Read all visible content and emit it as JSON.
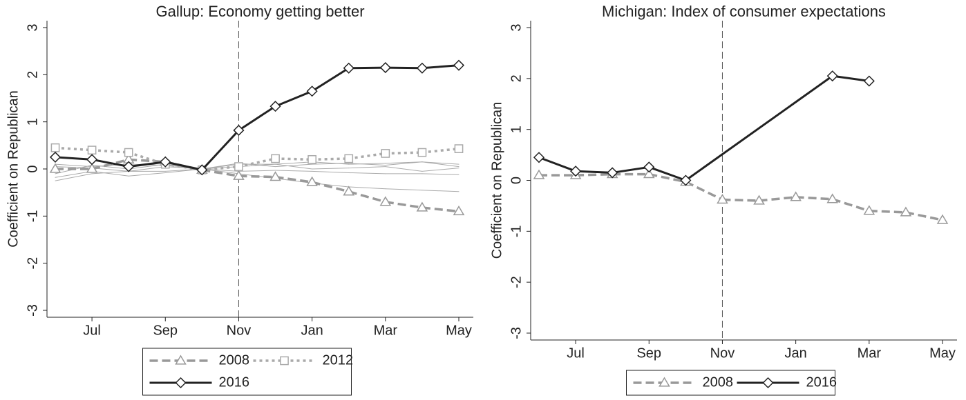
{
  "chart_data": [
    {
      "type": "line",
      "title": "Gallup: Economy getting better",
      "y_label": "Coefficient on Republican",
      "categories": [
        null,
        "Jul",
        null,
        "Sep",
        null,
        "Nov",
        null,
        "Jan",
        null,
        "Mar",
        null,
        "May"
      ],
      "ylim": [
        -3,
        3
      ],
      "yticks": [
        -3,
        -2,
        -1,
        0,
        1,
        2,
        3
      ],
      "vline": "Nov",
      "legend_columns": 2,
      "series": [
        {
          "color": "#aaaaaa",
          "width": 1,
          "values": [
            -0.25,
            -0.1,
            -0.05,
            -0.05,
            0,
            0.1,
            0.1,
            0.15,
            0.1,
            0.12,
            0.15,
            0.1
          ]
        },
        {
          "color": "#aaaaaa",
          "width": 1,
          "values": [
            -0.18,
            -0.05,
            -0.15,
            -0.08,
            0,
            -0.05,
            -0.03,
            -0.05,
            -0.08,
            -0.1,
            -0.1,
            -0.12
          ]
        },
        {
          "color": "#aaaaaa",
          "width": 1,
          "values": [
            0.05,
            0.02,
            -0.05,
            0.05,
            0,
            -0.1,
            -0.2,
            -0.3,
            -0.38,
            -0.42,
            -0.45,
            -0.48
          ]
        },
        {
          "color": "#aaaaaa",
          "width": 1,
          "values": [
            0.1,
            0.05,
            0.1,
            0.08,
            0,
            0.05,
            0.1,
            0.0,
            0.02,
            0.05,
            -0.05,
            0.02
          ]
        },
        {
          "color": "#aaaaaa",
          "width": 1,
          "values": [
            -0.1,
            0.08,
            0.0,
            0.1,
            0,
            0.12,
            0.05,
            0.1,
            0.12,
            0.08,
            0.15,
            0.05
          ]
        },
        {
          "name": "2008",
          "color": "#999999",
          "width": 3.5,
          "dash": "12,6",
          "marker": "triangle",
          "values": [
            0,
            0,
            0.2,
            0.15,
            -0.02,
            -0.15,
            -0.17,
            -0.28,
            -0.48,
            -0.7,
            -0.82,
            -0.9
          ]
        },
        {
          "name": "2012",
          "color": "#aaaaaa",
          "width": 3.5,
          "dash": "4,5",
          "marker": "square",
          "values": [
            0.45,
            0.4,
            0.35,
            0.1,
            -0.02,
            0.05,
            0.22,
            0.2,
            0.22,
            0.33,
            0.35,
            0.43
          ]
        },
        {
          "name": "2016",
          "color": "#222222",
          "width": 3,
          "marker": "diamond",
          "values": [
            0.25,
            0.2,
            0.05,
            0.15,
            -0.02,
            0.82,
            1.33,
            1.65,
            2.14,
            2.15,
            2.14,
            2.2
          ]
        }
      ]
    },
    {
      "type": "line",
      "title": "Michigan: Index of consumer expectations",
      "y_label": "Coefficient on Republican",
      "categories": [
        null,
        "Jul",
        null,
        "Sep",
        null,
        "Nov",
        null,
        "Jan",
        null,
        "Mar",
        null,
        "May"
      ],
      "ylim": [
        -3,
        3
      ],
      "yticks": [
        -3,
        -2,
        -1,
        0,
        1,
        2,
        3
      ],
      "vline": "Nov",
      "legend_columns": 2,
      "series": [
        {
          "name": "2008",
          "color": "#999999",
          "width": 3.5,
          "dash": "12,6",
          "marker": "triangle",
          "values": [
            0.1,
            0.1,
            0.12,
            0.12,
            -0.03,
            -0.38,
            -0.4,
            -0.33,
            -0.37,
            -0.6,
            -0.63,
            -0.78
          ]
        },
        {
          "name": "2016",
          "color": "#222222",
          "width": 3,
          "marker": "diamond",
          "values": [
            0.45,
            0.18,
            0.15,
            0.26,
            0.0,
            null,
            null,
            null,
            2.05,
            1.95,
            null,
            null
          ]
        }
      ]
    }
  ]
}
